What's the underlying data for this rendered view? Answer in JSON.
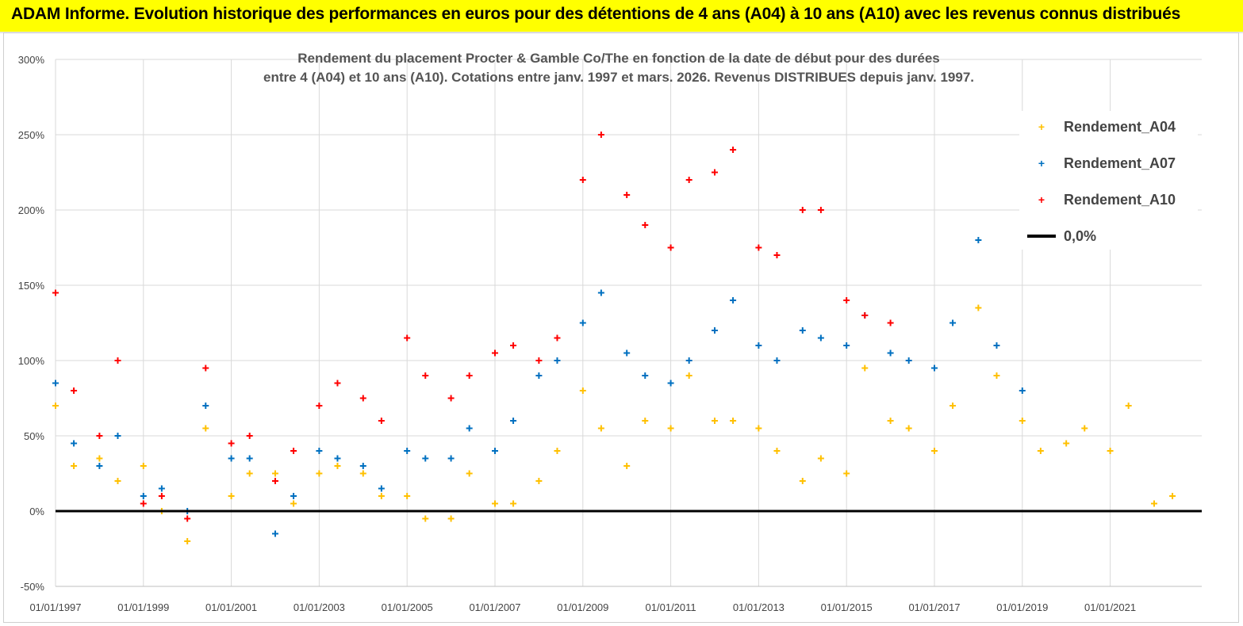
{
  "banner": {
    "title": "ADAM Informe. Evolution historique des performances en euros pour des détentions de 4 ans (A04) à 10 ans (A10) avec les revenus connus distribués"
  },
  "chart_data": {
    "type": "scatter",
    "subtitle": [
      "Rendement du placement Procter & Gamble Co/The en fonction de la date de début pour des durées",
      "entre 4 (A04) et 10 ans (A10).  Cotations entre janv. 1997 et mars. 2026. Revenus DISTRIBUES depuis janv. 1997."
    ],
    "x_ticks": [
      "01/01/1997",
      "01/01/1999",
      "01/01/2001",
      "01/01/2003",
      "01/01/2005",
      "01/01/2007",
      "01/01/2009",
      "01/01/2011",
      "01/01/2013",
      "01/01/2015",
      "01/01/2017",
      "01/01/2019",
      "01/01/2021"
    ],
    "y_ticks": [
      "300%",
      "250%",
      "200%",
      "150%",
      "100%",
      "50%",
      "0%",
      "-50%"
    ],
    "ylim": [
      -50,
      300
    ],
    "xlim": [
      "1997-01-01",
      "2023-02-01"
    ],
    "grid": true,
    "legend_position": "top-right",
    "series": [
      {
        "name": "Rendement_A04",
        "color": "#ffc000",
        "x": [
          "1997-01",
          "1997-06",
          "1998-01",
          "1998-06",
          "1999-01",
          "1999-06",
          "2000-01",
          "2000-06",
          "2001-01",
          "2001-06",
          "2002-01",
          "2002-06",
          "2003-01",
          "2003-06",
          "2004-01",
          "2004-06",
          "2005-01",
          "2005-06",
          "2006-01",
          "2006-06",
          "2007-01",
          "2007-06",
          "2008-01",
          "2008-06",
          "2009-01",
          "2009-06",
          "2010-01",
          "2010-06",
          "2011-01",
          "2011-06",
          "2012-01",
          "2012-06",
          "2013-01",
          "2013-06",
          "2014-01",
          "2014-06",
          "2015-01",
          "2015-06",
          "2016-01",
          "2016-06",
          "2017-01",
          "2017-06",
          "2018-01",
          "2018-06",
          "2019-01",
          "2019-06",
          "2020-01",
          "2020-06",
          "2021-01",
          "2021-06",
          "2022-01",
          "2022-06"
        ],
        "y": [
          70,
          30,
          35,
          20,
          30,
          0,
          -20,
          55,
          10,
          25,
          25,
          5,
          25,
          30,
          25,
          10,
          10,
          -5,
          -5,
          25,
          5,
          5,
          20,
          40,
          80,
          55,
          30,
          60,
          55,
          90,
          60,
          60,
          55,
          40,
          20,
          35,
          25,
          95,
          60,
          55,
          40,
          70,
          135,
          90,
          60,
          40,
          45,
          55,
          40,
          70,
          5,
          10
        ]
      },
      {
        "name": "Rendement_A07",
        "color": "#0070c0",
        "x": [
          "1997-01",
          "1997-06",
          "1998-01",
          "1998-06",
          "1999-01",
          "1999-06",
          "2000-01",
          "2000-06",
          "2001-01",
          "2001-06",
          "2002-01",
          "2002-06",
          "2003-01",
          "2003-06",
          "2004-01",
          "2004-06",
          "2005-01",
          "2005-06",
          "2006-01",
          "2006-06",
          "2007-01",
          "2007-06",
          "2008-01",
          "2008-06",
          "2009-01",
          "2009-06",
          "2010-01",
          "2010-06",
          "2011-01",
          "2011-06",
          "2012-01",
          "2012-06",
          "2013-01",
          "2013-06",
          "2014-01",
          "2014-06",
          "2015-01",
          "2015-06",
          "2016-01",
          "2016-06",
          "2017-01",
          "2017-06",
          "2018-01",
          "2018-06",
          "2019-01"
        ],
        "y": [
          85,
          45,
          30,
          50,
          10,
          15,
          0,
          70,
          35,
          35,
          -15,
          10,
          40,
          35,
          30,
          15,
          40,
          35,
          35,
          55,
          40,
          60,
          90,
          100,
          125,
          145,
          105,
          90,
          85,
          100,
          120,
          140,
          110,
          100,
          120,
          115,
          110,
          130,
          105,
          100,
          95,
          125,
          180,
          110,
          80
        ]
      },
      {
        "name": "Rendement_A10",
        "color": "#ff0000",
        "x": [
          "1997-01",
          "1997-06",
          "1998-01",
          "1998-06",
          "1999-01",
          "1999-06",
          "2000-01",
          "2000-06",
          "2001-01",
          "2001-06",
          "2002-01",
          "2002-06",
          "2003-01",
          "2003-06",
          "2004-01",
          "2004-06",
          "2005-01",
          "2005-06",
          "2006-01",
          "2006-06",
          "2007-01",
          "2007-06",
          "2008-01",
          "2008-06",
          "2009-01",
          "2009-06",
          "2010-01",
          "2010-06",
          "2011-01",
          "2011-06",
          "2012-01",
          "2012-06",
          "2013-01",
          "2013-06",
          "2014-01",
          "2014-06",
          "2015-01",
          "2015-06",
          "2016-01"
        ],
        "y": [
          145,
          80,
          50,
          100,
          5,
          10,
          -5,
          95,
          45,
          50,
          20,
          40,
          70,
          85,
          75,
          60,
          115,
          90,
          75,
          90,
          105,
          110,
          100,
          115,
          220,
          250,
          210,
          190,
          175,
          220,
          225,
          240,
          175,
          170,
          200,
          200,
          140,
          130,
          125
        ]
      },
      {
        "name": "0,0%",
        "color": "#000000",
        "x": [
          "1997-01-01",
          "2023-02-01"
        ],
        "y": [
          0,
          0
        ]
      }
    ]
  }
}
